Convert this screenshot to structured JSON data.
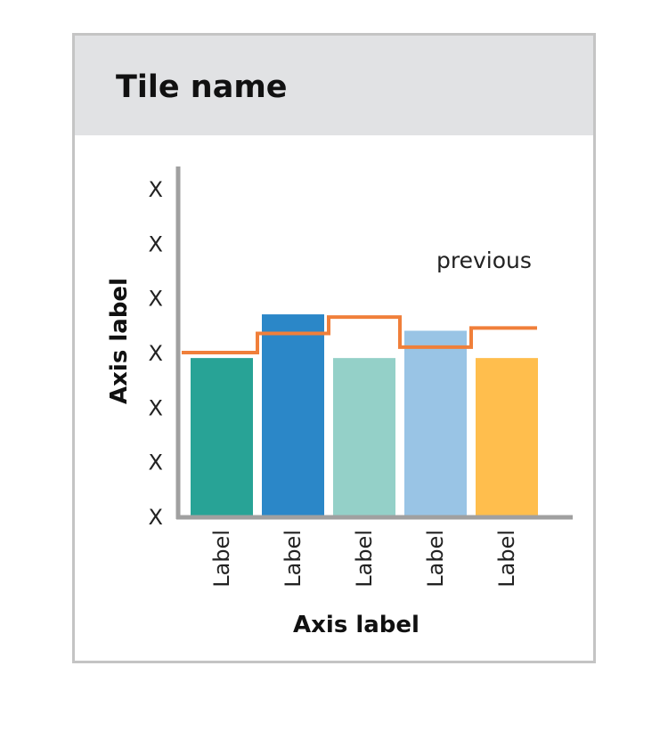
{
  "tile": {
    "title": "Tile name"
  },
  "chart_data": {
    "type": "bar",
    "title": "",
    "xlabel": "Axis label",
    "ylabel": "Axis label",
    "ytick_labels": [
      "X",
      "X",
      "X",
      "X",
      "X",
      "X",
      "X"
    ],
    "ylim": [
      0,
      6
    ],
    "categories": [
      "Label",
      "Label",
      "Label",
      "Label",
      "Label"
    ],
    "series": [
      {
        "values": [
          2.9,
          3.7,
          2.9,
          3.4,
          2.9
        ]
      }
    ],
    "bar_colors": [
      "#28a396",
      "#2b87c8",
      "#94d0c8",
      "#99c4e5",
      "#ffbe4d"
    ],
    "previous": {
      "label": "previous",
      "values": [
        3.0,
        3.35,
        3.65,
        3.1,
        3.45
      ],
      "color": "#f07f3a"
    },
    "grid": false
  }
}
